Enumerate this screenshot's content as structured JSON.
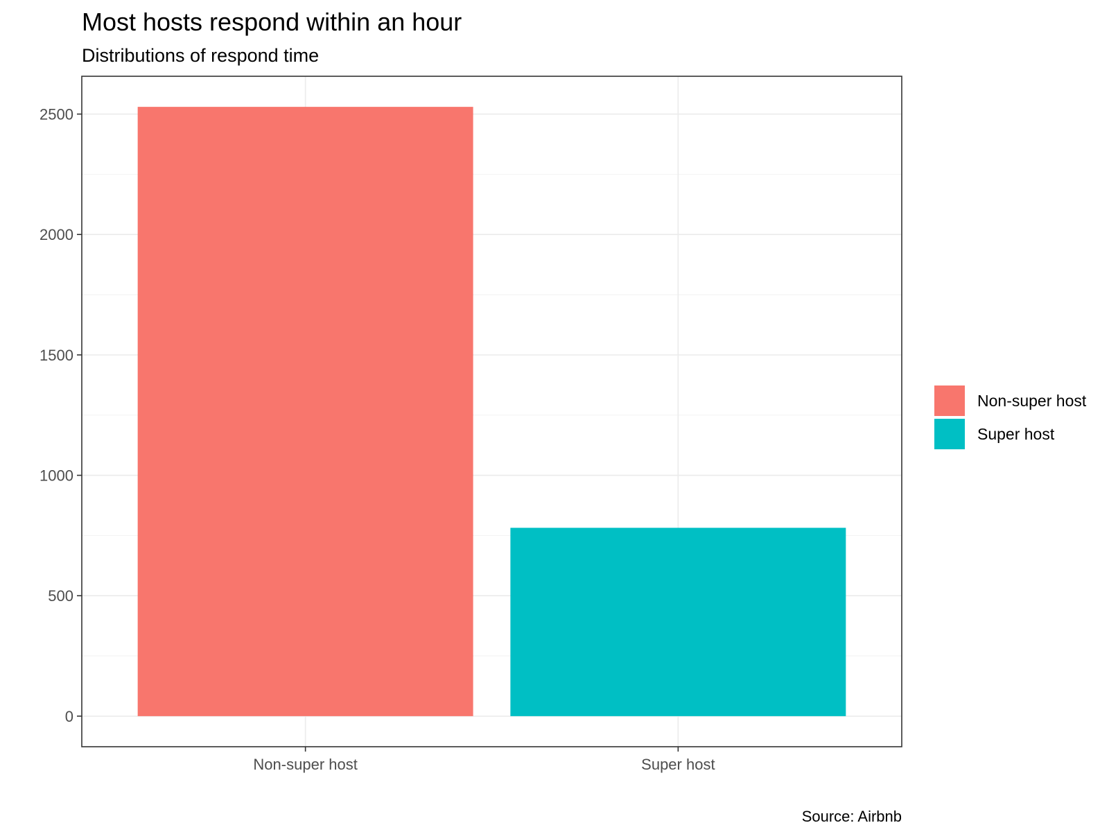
{
  "chart_data": {
    "type": "bar",
    "title": "Most hosts respond within an hour",
    "subtitle": "Distributions of respond time",
    "caption": "Source: Airbnb",
    "xlabel": "",
    "ylabel": "",
    "categories": [
      "Non-super host",
      "Super host"
    ],
    "values": [
      2530,
      782
    ],
    "colors": [
      "#F8766D",
      "#00BFC4"
    ],
    "ylim": [
      -127,
      2657
    ],
    "yticks": [
      0,
      500,
      1000,
      1500,
      2000,
      2500
    ],
    "grid": true,
    "legend": {
      "position": "right",
      "entries": [
        "Non-super host",
        "Super host"
      ]
    }
  }
}
